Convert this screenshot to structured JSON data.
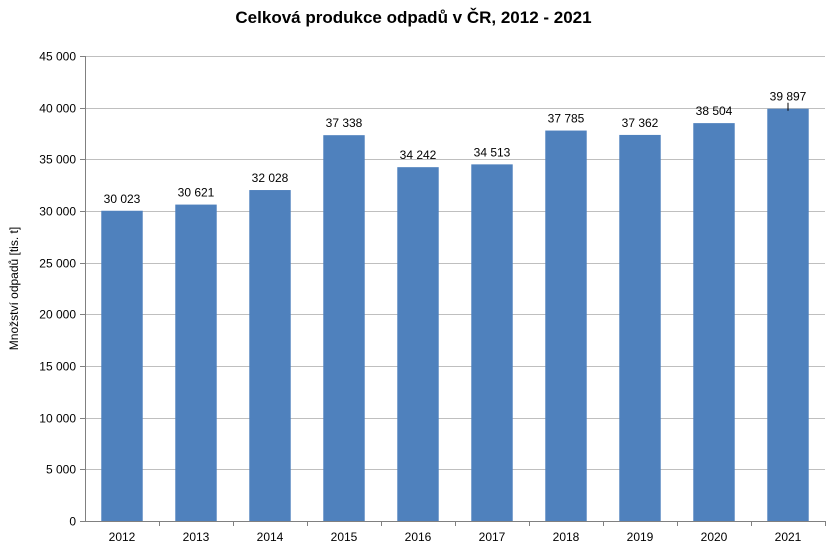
{
  "chart_data": {
    "type": "bar",
    "title": "Celková produkce odpadů v ČR, 2012 - 2021",
    "ylabel": "Množství odpadů [tis. t]",
    "xlabel": "",
    "categories": [
      "2012",
      "2013",
      "2014",
      "2015",
      "2016",
      "2017",
      "2018",
      "2019",
      "2020",
      "2021"
    ],
    "values": [
      30023,
      30621,
      32028,
      37338,
      34242,
      34513,
      37785,
      37362,
      38504,
      39897
    ],
    "value_labels": [
      "30 023",
      "30 621",
      "32 028",
      "37 338",
      "34 242",
      "34 513",
      "37 785",
      "37 362",
      "38 504",
      "39 897"
    ],
    "ylim": [
      0,
      45000
    ],
    "yticks": [
      0,
      5000,
      10000,
      15000,
      20000,
      25000,
      30000,
      35000,
      40000,
      45000
    ],
    "ytick_labels": [
      "0",
      "5 000",
      "10 000",
      "15 000",
      "20 000",
      "25 000",
      "30 000",
      "35 000",
      "40 000",
      "45 000"
    ],
    "grid": true,
    "bar_color": "#4F81BD",
    "grid_color": "#BFBFBF"
  }
}
